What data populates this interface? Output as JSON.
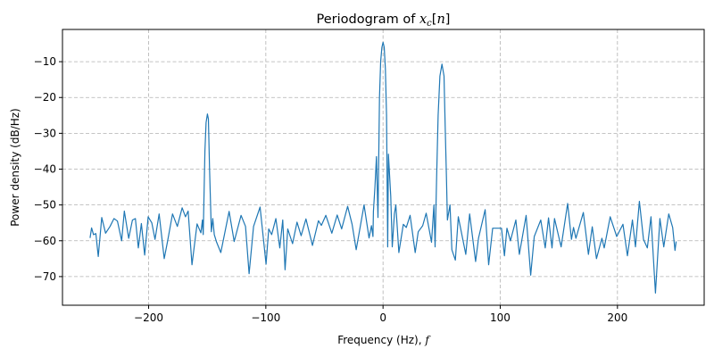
{
  "chart_data": {
    "type": "line",
    "title": {
      "prefix": "Periodogram of ",
      "var": "x",
      "sub": "c",
      "open": "[",
      "arg": "n",
      "close": "]"
    },
    "xlabel": {
      "text": "Frequency (Hz), ",
      "var": "f"
    },
    "ylabel": "Power density (dB/Hz)",
    "xlim": [
      -273.5,
      274
    ],
    "ylim": [
      -78,
      -1
    ],
    "xticks": [
      -200,
      -100,
      0,
      100,
      200
    ],
    "xtick_labels": [
      "−200",
      "−100",
      "0",
      "100",
      "200"
    ],
    "yticks": [
      -10,
      -20,
      -30,
      -40,
      -50,
      -60,
      -70
    ],
    "ytick_labels": [
      "−10",
      "−20",
      "−30",
      "−40",
      "−50",
      "−60",
      "−70"
    ],
    "grid": true,
    "grid_style": "dashed",
    "line_color": "#1f77b4",
    "grid_color": "#b0b0b0",
    "series": [
      {
        "x": [
          -250,
          -248.7,
          -247,
          -245,
          -243,
          -240,
          -236.7,
          -232.9,
          -229.6,
          -226.6,
          -223,
          -220.7,
          -217,
          -213.8,
          -211.3,
          -208.8,
          -206.2,
          -203.4,
          -200.4,
          -197.3,
          -194.5,
          -191,
          -186.7,
          -183.9,
          -179.6,
          -175.5,
          -171.4,
          -168.6,
          -166.3,
          -163,
          -158.7,
          -155.4,
          -154.1,
          -153.4,
          -152,
          -151,
          -149.8,
          -149,
          -148,
          -146.5,
          -145.3,
          -144,
          -142,
          -138.4,
          -131.3,
          -127,
          -121.1,
          -117.3,
          -114.3,
          -110.5,
          -104.9,
          -99.8,
          -97.5,
          -95,
          -91.4,
          -88.1,
          -85.6,
          -83.6,
          -81.3,
          -77.2,
          -73.4,
          -69.9,
          -65.8,
          -60.2,
          -55.1,
          -52.6,
          -48.8,
          -43.7,
          -39.1,
          -35.3,
          -30.2,
          -26.4,
          -22.9,
          -16.2,
          -11.9,
          -9.9,
          -8.6,
          -8.2,
          -6.9,
          -5.6,
          -4.3,
          -3,
          -2,
          -1,
          0,
          1,
          2,
          3,
          4,
          4.6,
          6.6,
          7.9,
          9.7,
          10.9,
          13.5,
          17.3,
          19.8,
          23.1,
          27.4,
          30,
          33.8,
          36.8,
          41.4,
          43.4,
          44.4,
          45.7,
          47,
          48.5,
          50.3,
          52,
          53,
          54.1,
          54.9,
          57.1,
          58.7,
          61.7,
          64.2,
          70.6,
          73.9,
          79,
          81.5,
          87.1,
          90.1,
          93.5,
          101.1,
          103.6,
          105.7,
          108.7,
          113.3,
          116.3,
          122.1,
          126,
          129,
          134.6,
          138.4,
          141.2,
          144.2,
          146.3,
          151.9,
          157.5,
          160.8,
          162.5,
          164.6,
          170.9,
          175.2,
          178.5,
          182.1,
          186.7,
          188.7,
          193.8,
          199.4,
          204.7,
          208.5,
          212.8,
          215.4,
          218.7,
          222.2,
          225.5,
          228.6,
          232.4,
          236.2,
          239.5,
          243.8,
          247.1,
          249.1,
          250.1
        ],
        "y": [
          -59.2,
          -56.4,
          -58.3,
          -58,
          -64.4,
          -53.5,
          -57.9,
          -56,
          -53.8,
          -54.5,
          -60,
          -51.7,
          -59.3,
          -54.2,
          -53.8,
          -62,
          -55.2,
          -64,
          -53.3,
          -55,
          -59.6,
          -52.5,
          -65,
          -60.2,
          -52.5,
          -56,
          -50.8,
          -53.3,
          -51.7,
          -66.7,
          -55.3,
          -57.8,
          -54.2,
          -58.3,
          -35,
          -27,
          -24.6,
          -26,
          -40,
          -57.5,
          -53.8,
          -58.3,
          -60.4,
          -63.3,
          -51.8,
          -60.2,
          -52.9,
          -56,
          -69.2,
          -56,
          -50.6,
          -66.5,
          -56.7,
          -58.3,
          -53.8,
          -62,
          -54.2,
          -68.1,
          -56.7,
          -60.8,
          -54.8,
          -58.6,
          -53.9,
          -61.3,
          -54.4,
          -55.7,
          -52.9,
          -57.9,
          -52.8,
          -56.7,
          -50.4,
          -55.4,
          -62.5,
          -50,
          -59.2,
          -55.8,
          -58.8,
          -51.8,
          -45,
          -36.5,
          -53.5,
          -20,
          -10,
          -6,
          -4.6,
          -6,
          -12,
          -25,
          -61.7,
          -35.8,
          -47.5,
          -61.7,
          -52.5,
          -50,
          -63.3,
          -55.4,
          -56.3,
          -52.9,
          -63.3,
          -57.5,
          -55.8,
          -52.3,
          -60.4,
          -50,
          -61.7,
          -42.5,
          -25,
          -14,
          -10.7,
          -14,
          -28,
          -42.1,
          -54.2,
          -50,
          -62.5,
          -65.4,
          -53.3,
          -63.8,
          -52.5,
          -65.8,
          -59.2,
          -51.3,
          -66.7,
          -56.5,
          -56.5,
          -64.2,
          -56.5,
          -60,
          -54.2,
          -63.8,
          -52.9,
          -69.6,
          -58.8,
          -54.2,
          -62,
          -53.6,
          -62,
          -53.8,
          -61.7,
          -49.6,
          -59.6,
          -56.3,
          -59.3,
          -52.1,
          -63.8,
          -56.1,
          -65,
          -59.3,
          -62,
          -53.3,
          -58.8,
          -55.4,
          -64.2,
          -54.2,
          -61.7,
          -49,
          -59.6,
          -62,
          -53.3,
          -74.6,
          -53.8,
          -61.7,
          -52.5,
          -56.3,
          -62.7,
          -60.2
        ]
      }
    ]
  }
}
